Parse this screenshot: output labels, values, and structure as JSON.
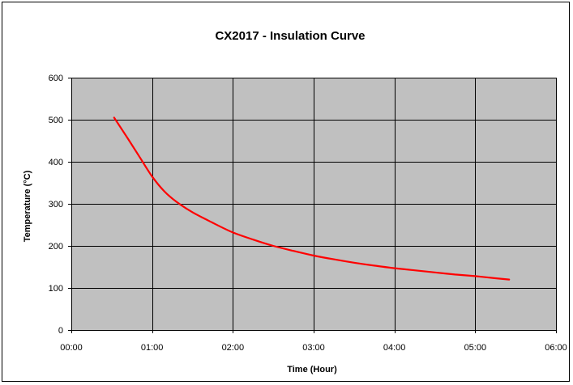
{
  "chart_data": {
    "type": "line",
    "title": "CX2017 - Insulation Curve",
    "xlabel": "Time (Hour)",
    "ylabel": "Temperature (°C)",
    "x_unit": "hours",
    "xlim": [
      0,
      6
    ],
    "ylim": [
      0,
      600
    ],
    "x_ticks": [
      0,
      1,
      2,
      3,
      4,
      5,
      6
    ],
    "x_tick_labels": [
      "00:00",
      "01:00",
      "02:00",
      "03:00",
      "04:00",
      "05:00",
      "06:00"
    ],
    "y_ticks": [
      0,
      100,
      200,
      300,
      400,
      500,
      600
    ],
    "y_tick_labels": [
      "0",
      "100",
      "200",
      "300",
      "400",
      "500",
      "600"
    ],
    "grid": true,
    "legend": "none",
    "series": [
      {
        "color": "#ff0000",
        "x": [
          0.53,
          0.7,
          0.85,
          1.0,
          1.15,
          1.3,
          1.5,
          1.75,
          2.0,
          2.25,
          2.5,
          2.75,
          3.0,
          3.25,
          3.5,
          3.75,
          4.0,
          4.25,
          4.5,
          4.75,
          5.0,
          5.25,
          5.42
        ],
        "y": [
          505,
          455,
          410,
          365,
          330,
          305,
          280,
          255,
          232,
          215,
          200,
          188,
          177,
          168,
          160,
          153,
          147,
          142,
          137,
          132,
          128,
          123,
          120
        ]
      }
    ]
  },
  "colors": {
    "plot_background": "#c0c0c0",
    "grid": "#000000",
    "line": "#ff0000"
  }
}
